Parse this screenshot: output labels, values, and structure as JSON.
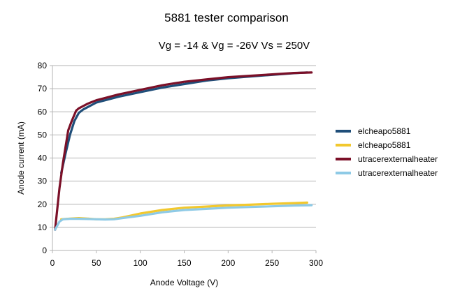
{
  "chart_data": {
    "type": "line",
    "title": "5881 tester comparison",
    "subtitle": "Vg = -14 & Vg = -26V Vs = 250V",
    "xlabel": "Anode Voltage (V)",
    "ylabel": "Anode current (mA)",
    "xlim": [
      0,
      300
    ],
    "ylim": [
      0,
      80
    ],
    "xticks": [
      0,
      50,
      100,
      150,
      200,
      250,
      300
    ],
    "yticks": [
      0,
      10,
      20,
      30,
      40,
      50,
      60,
      70,
      80
    ],
    "grid": "horizontal",
    "legend": "right",
    "series": [
      {
        "name": "elcheapo5881",
        "color": "#1f4e79",
        "x": [
          10,
          15,
          20,
          25,
          30,
          35,
          40,
          50,
          60,
          75,
          100,
          125,
          150,
          175,
          200,
          225,
          250,
          275,
          290
        ],
        "y": [
          33.5,
          42,
          50,
          56,
          59.5,
          61,
          62,
          64,
          65,
          66.5,
          68.5,
          70.5,
          72,
          73.5,
          74.5,
          75.3,
          76,
          76.7,
          77
        ]
      },
      {
        "name": "elcheapo5881",
        "color": "#f2c82e",
        "x": [
          10,
          20,
          30,
          40,
          50,
          60,
          70,
          80,
          100,
          125,
          150,
          175,
          200,
          225,
          250,
          275,
          290
        ],
        "y": [
          13.5,
          13.8,
          14,
          13.8,
          13.5,
          13.5,
          13.7,
          14.3,
          16,
          17.5,
          18.5,
          19,
          19.5,
          19.8,
          20.2,
          20.5,
          20.7
        ]
      },
      {
        "name": "utracerexternalheater",
        "color": "#7b1028",
        "x": [
          3,
          8,
          12,
          18,
          22,
          27,
          30,
          35,
          40,
          50,
          60,
          75,
          100,
          125,
          150,
          175,
          200,
          225,
          250,
          275,
          295
        ],
        "y": [
          9,
          27,
          38,
          52,
          56,
          60.5,
          61.5,
          62.5,
          63.5,
          65,
          66,
          67.5,
          69.5,
          71.5,
          73,
          74,
          75,
          75.6,
          76.2,
          76.8,
          77
        ]
      },
      {
        "name": "utracerexternalheater",
        "color": "#8ecae6",
        "x": [
          3,
          8,
          12,
          20,
          30,
          40,
          50,
          60,
          70,
          80,
          100,
          125,
          150,
          175,
          200,
          225,
          250,
          275,
          295
        ],
        "y": [
          9,
          12.5,
          13.5,
          13.7,
          13.7,
          13.6,
          13.5,
          13.4,
          13.5,
          14,
          15,
          16.5,
          17.5,
          18,
          18.5,
          18.8,
          19.1,
          19.4,
          19.6
        ]
      }
    ]
  }
}
